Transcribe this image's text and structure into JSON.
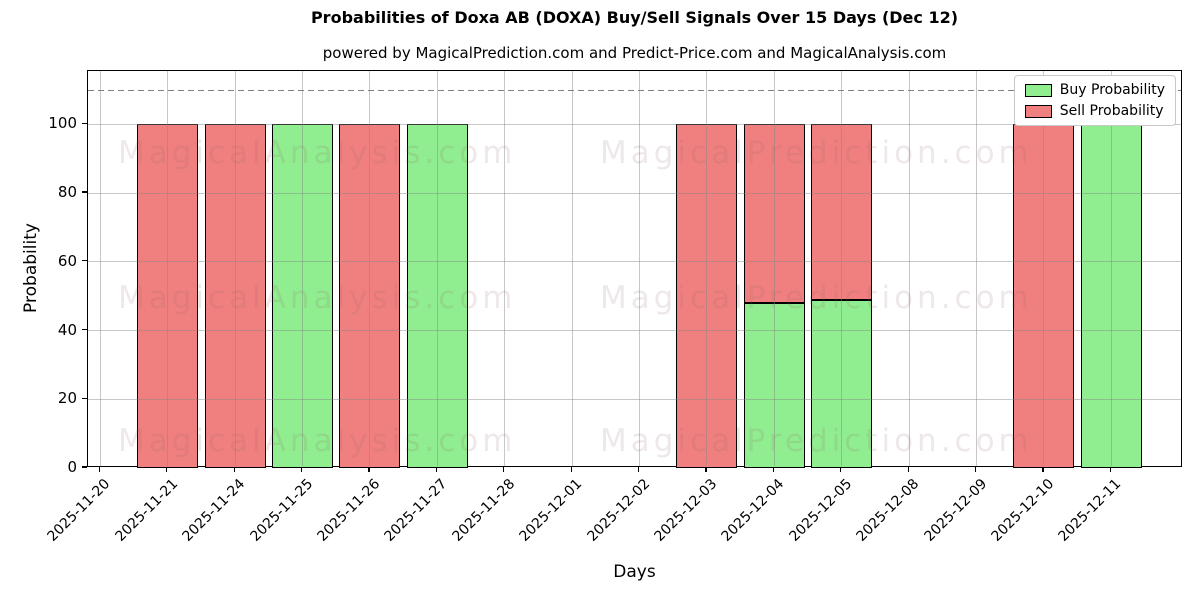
{
  "page_title": "Probabilities of Doxa AB (DOXA) Buy/Sell Signals Over 15 Days (Dec 12)",
  "subtitle": "powered by MagicalPrediction.com and Predict-Price.com and MagicalAnalysis.com",
  "axes": {
    "xlabel": "Days",
    "ylabel": "Probability"
  },
  "legend": {
    "items": [
      {
        "label": "Buy Probability",
        "color": "#90EE90"
      },
      {
        "label": "Sell Probability",
        "color": "#F08080"
      }
    ]
  },
  "watermarks": {
    "left_text": "MagicalAnalysis.com",
    "right_text": "MagicalPrediction.com"
  },
  "chart_data": {
    "type": "bar",
    "stacked": true,
    "title": "Probabilities of Doxa AB (DOXA) Buy/Sell Signals Over 15 Days (Dec 12)",
    "xlabel": "Days",
    "ylabel": "Probability",
    "categories": [
      "2025-11-20",
      "2025-11-21",
      "2025-11-24",
      "2025-11-25",
      "2025-11-26",
      "2025-11-27",
      "2025-11-28",
      "2025-12-01",
      "2025-12-02",
      "2025-12-03",
      "2025-12-04",
      "2025-12-05",
      "2025-12-08",
      "2025-12-09",
      "2025-12-10",
      "2025-12-11"
    ],
    "series": [
      {
        "name": "Buy Probability",
        "color": "#90EE90",
        "values": [
          0,
          0,
          0,
          100,
          0,
          100,
          0,
          0,
          0,
          0,
          48,
          49,
          0,
          0,
          0,
          100
        ]
      },
      {
        "name": "Sell Probability",
        "color": "#F08080",
        "values": [
          0,
          100,
          100,
          0,
          100,
          0,
          0,
          0,
          0,
          100,
          52,
          51,
          0,
          0,
          100,
          0
        ]
      }
    ],
    "ylim": [
      0,
      115.5
    ],
    "yticks": [
      0,
      20,
      40,
      60,
      80,
      100
    ],
    "grid": true,
    "bar_edge_color": "#000000",
    "grid_color": "#b0b0b0",
    "reference_line": {
      "y": 110,
      "color": "#808080",
      "style": "dashed"
    },
    "legend_position": "upper right"
  }
}
